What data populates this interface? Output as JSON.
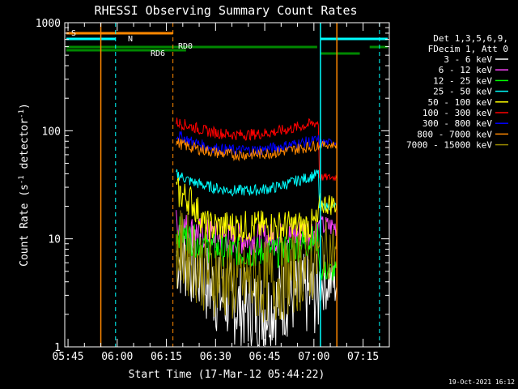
{
  "chart_data": {
    "type": "line",
    "title": "RHESSI Observing Summary Count Rates",
    "xlabel": "Start Time (17-Mar-12 05:44:22)",
    "ylabel_main": "Count Rate (s",
    "ylabel_sup1": "-1",
    "ylabel_mid": " detector",
    "ylabel_sup2": "-1",
    "ylabel_end": ")",
    "yscale": "log",
    "ylim": [
      1,
      1000
    ],
    "y_ticks": [
      {
        "value": 1,
        "label": "1"
      },
      {
        "value": 10,
        "label": "10"
      },
      {
        "value": 100,
        "label": "100"
      },
      {
        "value": 1000,
        "label": "1000"
      }
    ],
    "xlim_minutes": [
      -1,
      98
    ],
    "x_ticks": [
      {
        "value": 0,
        "label": "05:45"
      },
      {
        "value": 15,
        "label": "06:00"
      },
      {
        "value": 30,
        "label": "06:15"
      },
      {
        "value": 45,
        "label": "06:30"
      },
      {
        "value": 60,
        "label": "06:45"
      },
      {
        "value": 75,
        "label": "07:00"
      },
      {
        "value": 90,
        "label": "07:15"
      }
    ],
    "legend_header": [
      "Det 1,3,5,6,9,",
      "FDecim 1, Att 0"
    ],
    "series": [
      {
        "name": "3 - 6 keV",
        "color": "#ffffff",
        "flare": [
          7,
          6,
          4,
          3,
          2.5,
          2.2,
          2.2,
          2.5,
          3,
          3,
          3
        ],
        "tail": 4
      },
      {
        "name": "6 - 12 keV",
        "color": "#ff44ff",
        "flare": [
          14,
          12,
          11,
          10.5,
          10,
          10,
          10,
          10,
          10.5,
          11.5,
          12
        ],
        "tail": 13
      },
      {
        "name": "12 - 25 keV",
        "color": "#00ff00",
        "flare": [
          12,
          10,
          8.5,
          8,
          7.5,
          7.5,
          7.5,
          7.5,
          8,
          9,
          10
        ],
        "tail": 5
      },
      {
        "name": "25 - 50 keV",
        "color": "#00ffff",
        "flare": [
          40,
          34,
          31,
          29,
          28,
          28,
          28.5,
          30,
          33,
          36,
          40
        ],
        "tail": 20
      },
      {
        "name": "50 - 100 keV",
        "color": "#ffff00",
        "flare": [
          27,
          23,
          13,
          13,
          13,
          13,
          13,
          13,
          13,
          13,
          14
        ],
        "tail": 21
      },
      {
        "name": "100 - 300 keV",
        "color": "#ff0000",
        "flare": [
          120,
          110,
          100,
          95,
          92,
          92,
          94,
          98,
          104,
          112,
          120
        ],
        "tail": 37
      },
      {
        "name": "300 - 800 keV",
        "color": "#0000ff",
        "flare": [
          92,
          80,
          72,
          68,
          66,
          66,
          67,
          70,
          74,
          78,
          82
        ],
        "tail": 78
      },
      {
        "name": "800 - 7000 keV",
        "color": "#ff8800",
        "flare": [
          78,
          70,
          66,
          62,
          60,
          60,
          61,
          63,
          66,
          70,
          74
        ],
        "tail": 74
      },
      {
        "name": "7000 - 15000 keV",
        "color": "#998800",
        "flare": [
          8,
          7,
          5,
          4.5,
          4,
          4,
          4,
          4,
          4.5,
          5.5,
          6.5
        ],
        "tail": 8
      }
    ],
    "flags": {
      "S": {
        "label": "S",
        "color": "#ff8800"
      },
      "N": {
        "label": "N",
        "color": "#00ffff"
      },
      "RD0": {
        "label": "RD0",
        "color": "#008800"
      },
      "RD6": {
        "label": "RD6",
        "color": "#008800"
      }
    },
    "footer_date": "19-Oct-2021 16:12"
  }
}
